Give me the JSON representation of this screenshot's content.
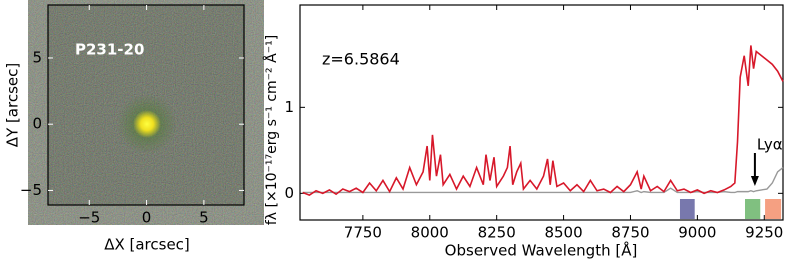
{
  "chart_data": [
    {
      "type": "image",
      "label": "P231-20",
      "xlabel": "ΔX [arcsec]",
      "ylabel": "ΔY [arcsec]",
      "xlim": [
        -8.6,
        8.5
      ],
      "ylim": [
        -6.1,
        9.0
      ],
      "xticks": [
        {
          "value": -5,
          "label": "−5"
        },
        0,
        5
      ],
      "yticks": [
        {
          "value": -5,
          "label": "−5"
        },
        0,
        5
      ]
    },
    {
      "type": "line",
      "annotation": "z=6.5864",
      "xlabel": "Observed Wavelength [Å]",
      "ylabel": "fλ [×10⁻¹⁷erg s⁻¹ cm⁻² Å⁻¹]",
      "xlim": [
        7515,
        9320
      ],
      "ylim": [
        -0.31,
        2.19
      ],
      "xticks": [
        7750,
        8000,
        8250,
        8500,
        8750,
        9000,
        9250
      ],
      "yticks": [
        0,
        1
      ],
      "x": [
        7525,
        7550,
        7575,
        7600,
        7625,
        7650,
        7675,
        7700,
        7725,
        7750,
        7775,
        7800,
        7825,
        7850,
        7875,
        7900,
        7925,
        7950,
        7975,
        7990,
        8000,
        8010,
        8025,
        8040,
        8050,
        8075,
        8100,
        8125,
        8150,
        8175,
        8200,
        8210,
        8225,
        8240,
        8250,
        8275,
        8290,
        8300,
        8310,
        8325,
        8340,
        8350,
        8375,
        8400,
        8425,
        8440,
        8450,
        8460,
        8475,
        8500,
        8525,
        8550,
        8575,
        8600,
        8625,
        8650,
        8675,
        8700,
        8725,
        8750,
        8775,
        8790,
        8800,
        8825,
        8850,
        8875,
        8900,
        8925,
        8950,
        8975,
        9000,
        9025,
        9050,
        9075,
        9100,
        9125,
        9140,
        9150,
        9160,
        9175,
        9190,
        9200,
        9210,
        9220,
        9240,
        9260,
        9280,
        9300,
        9320
      ],
      "series": [
        {
          "color": "#d7182a",
          "values": [
            0.01,
            -0.02,
            0.03,
            0.0,
            0.04,
            -0.01,
            0.05,
            0.02,
            0.06,
            0.01,
            0.12,
            0.03,
            0.15,
            0.02,
            0.18,
            0.05,
            0.3,
            0.1,
            0.25,
            0.55,
            0.15,
            0.68,
            0.2,
            0.45,
            0.1,
            0.22,
            0.05,
            0.2,
            0.08,
            0.3,
            0.1,
            0.45,
            0.15,
            0.42,
            0.08,
            0.2,
            0.3,
            0.55,
            0.1,
            0.25,
            0.35,
            0.05,
            0.15,
            0.05,
            0.2,
            0.4,
            0.1,
            0.38,
            0.08,
            0.12,
            0.03,
            0.1,
            0.02,
            0.15,
            0.03,
            0.05,
            0.01,
            0.08,
            0.02,
            0.1,
            0.25,
            0.05,
            0.2,
            0.03,
            0.08,
            0.02,
            0.15,
            0.03,
            0.05,
            0.01,
            0.04,
            0.0,
            0.03,
            0.01,
            0.04,
            0.08,
            0.12,
            0.6,
            1.35,
            1.6,
            1.25,
            1.72,
            1.45,
            1.65,
            1.6,
            1.55,
            1.5,
            1.42,
            1.3
          ]
        },
        {
          "color": "#999999",
          "values": [
            0.01,
            0.01,
            0.01,
            0.01,
            0.01,
            0.01,
            0.01,
            0.01,
            0.01,
            0.01,
            0.01,
            0.01,
            0.01,
            0.01,
            0.01,
            0.01,
            0.01,
            0.01,
            0.01,
            0.01,
            0.01,
            0.01,
            0.01,
            0.01,
            0.01,
            0.01,
            0.01,
            0.01,
            0.01,
            0.01,
            0.01,
            0.01,
            0.01,
            0.01,
            0.01,
            0.01,
            0.01,
            0.01,
            0.01,
            0.01,
            0.01,
            0.01,
            0.01,
            0.01,
            0.01,
            0.01,
            0.01,
            0.01,
            0.01,
            0.01,
            0.01,
            0.01,
            0.01,
            0.01,
            0.01,
            0.01,
            0.01,
            0.01,
            0.01,
            0.01,
            0.03,
            0.01,
            0.02,
            0.01,
            0.01,
            0.01,
            0.06,
            0.01,
            0.01,
            0.01,
            0.02,
            0.01,
            0.01,
            0.01,
            0.02,
            0.01,
            0.01,
            0.02,
            0.02,
            0.02,
            0.02,
            0.03,
            0.02,
            0.03,
            0.04,
            0.05,
            0.12,
            0.25,
            0.3
          ]
        }
      ],
      "bands": [
        {
          "color": "#7878ad",
          "range": [
            8935,
            8990
          ]
        },
        {
          "color": "#80c080",
          "range": [
            9178,
            9235
          ]
        },
        {
          "color": "#f5a082",
          "range": [
            9253,
            9313
          ]
        }
      ],
      "arrow": {
        "label": "Lyα",
        "x": 9215
      }
    }
  ]
}
